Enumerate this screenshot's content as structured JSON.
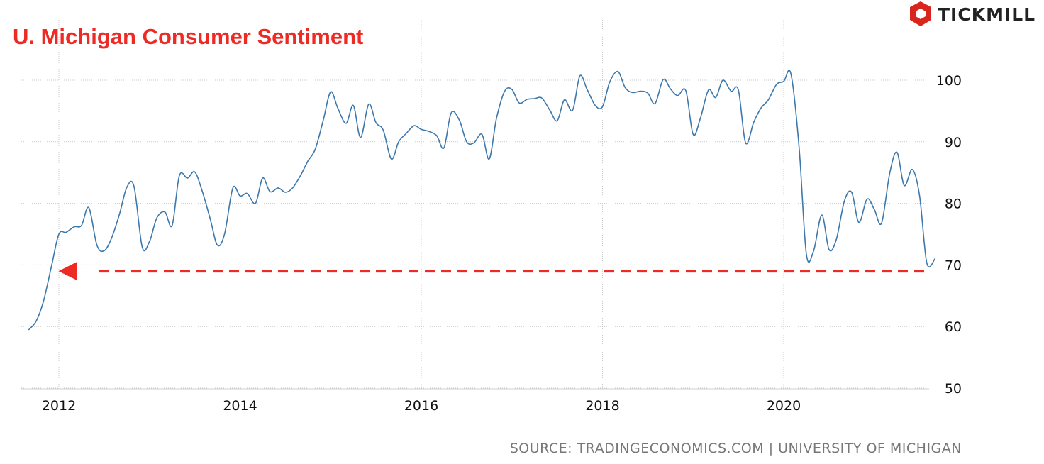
{
  "title": "U. Michigan Consumer Sentiment",
  "brand": "TICKMILL",
  "source": "SOURCE: TRADINGECONOMICS.COM | UNIVERSITY OF MICHIGAN",
  "colors": {
    "title": "#ee2a24",
    "line": "#3d78ad",
    "annotation": "#ee2a24",
    "grid": "#c9c9c9",
    "logo": "#d9261c"
  },
  "chart_data": {
    "type": "line",
    "title": "U. Michigan Consumer Sentiment",
    "xlabel": "",
    "ylabel": "",
    "x_ticks": [
      "2012",
      "2014",
      "2016",
      "2018",
      "2020"
    ],
    "y_ticks": [
      50,
      60,
      70,
      80,
      90,
      100
    ],
    "xlim": [
      2011.67,
      2021.75
    ],
    "ylim": [
      48,
      108
    ],
    "grid": true,
    "y_axis_side": "right",
    "series": [
      {
        "x": [
          2011.67,
          2011.75,
          2011.83,
          2011.92,
          2012.0,
          2012.08,
          2012.17,
          2012.25,
          2012.33,
          2012.42,
          2012.5,
          2012.58,
          2012.67,
          2012.75,
          2012.83,
          2012.92,
          2013.0,
          2013.08,
          2013.17,
          2013.25,
          2013.33,
          2013.42,
          2013.5,
          2013.58,
          2013.67,
          2013.75,
          2013.83,
          2013.92,
          2014.0,
          2014.08,
          2014.17,
          2014.25,
          2014.33,
          2014.42,
          2014.5,
          2014.58,
          2014.67,
          2014.75,
          2014.83,
          2014.92,
          2015.0,
          2015.08,
          2015.17,
          2015.25,
          2015.33,
          2015.42,
          2015.5,
          2015.58,
          2015.67,
          2015.75,
          2015.83,
          2015.92,
          2016.0,
          2016.08,
          2016.17,
          2016.25,
          2016.33,
          2016.42,
          2016.5,
          2016.58,
          2016.67,
          2016.75,
          2016.83,
          2016.92,
          2017.0,
          2017.08,
          2017.17,
          2017.25,
          2017.33,
          2017.42,
          2017.5,
          2017.58,
          2017.67,
          2017.75,
          2017.83,
          2017.92,
          2018.0,
          2018.08,
          2018.17,
          2018.25,
          2018.33,
          2018.42,
          2018.5,
          2018.58,
          2018.67,
          2018.75,
          2018.83,
          2018.92,
          2019.0,
          2019.08,
          2019.17,
          2019.25,
          2019.33,
          2019.42,
          2019.5,
          2019.58,
          2019.67,
          2019.75,
          2019.83,
          2019.92,
          2020.0,
          2020.08,
          2020.17,
          2020.25,
          2020.33,
          2020.42,
          2020.5,
          2020.58,
          2020.67,
          2020.75,
          2020.83,
          2020.92,
          2021.0,
          2021.08,
          2021.17,
          2021.25,
          2021.33,
          2021.42,
          2021.5,
          2021.58,
          2021.67
        ],
        "y": [
          59.5,
          60.9,
          64.1,
          69.9,
          75.0,
          75.3,
          76.2,
          76.4,
          79.3,
          73.2,
          72.3,
          74.3,
          78.3,
          82.6,
          82.7,
          72.9,
          73.8,
          77.6,
          78.6,
          76.4,
          84.5,
          84.1,
          85.1,
          82.1,
          77.5,
          73.2,
          75.1,
          82.5,
          81.2,
          81.6,
          80.0,
          84.1,
          81.9,
          82.5,
          81.8,
          82.5,
          84.6,
          86.9,
          88.8,
          93.6,
          98.1,
          95.4,
          93.0,
          95.9,
          90.7,
          96.1,
          93.1,
          91.9,
          87.2,
          90.0,
          91.3,
          92.6,
          92.0,
          91.7,
          91.0,
          89.0,
          94.7,
          93.5,
          90.0,
          89.8,
          91.2,
          87.2,
          93.8,
          98.2,
          98.5,
          96.3,
          96.9,
          97.0,
          97.1,
          95.1,
          93.4,
          96.8,
          95.1,
          100.7,
          98.5,
          95.9,
          95.7,
          99.7,
          101.4,
          98.8,
          98.0,
          98.2,
          97.9,
          96.2,
          100.1,
          98.6,
          97.5,
          98.3,
          91.2,
          93.8,
          98.4,
          97.2,
          100.0,
          98.2,
          98.4,
          89.8,
          93.2,
          95.5,
          96.8,
          99.3,
          99.8,
          101.0,
          89.1,
          71.8,
          72.3,
          78.1,
          72.5,
          74.1,
          80.4,
          81.8,
          76.9,
          80.7,
          79.0,
          76.8,
          84.9,
          88.3,
          82.9,
          85.5,
          81.2,
          70.3,
          71.0
        ]
      }
    ],
    "annotation": {
      "type": "dashed-horizontal-arrow",
      "direction": "left",
      "y": 69,
      "x_from": 2021.55,
      "x_to": 2012.2
    }
  }
}
